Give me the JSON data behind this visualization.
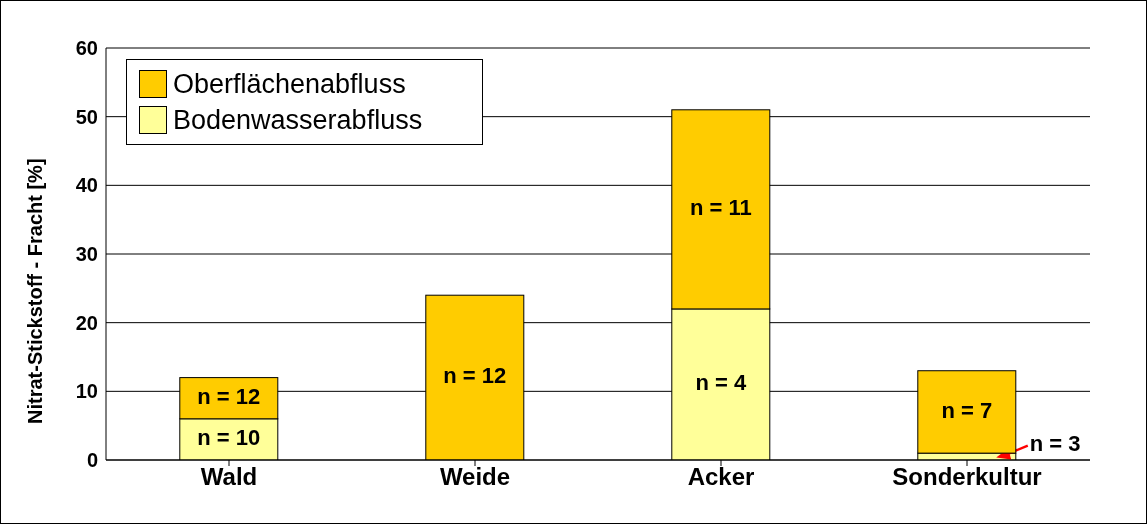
{
  "chart_data": {
    "type": "bar",
    "stacked": true,
    "ylabel": "Nitrat-Stickstoff - Fracht [%]",
    "categories": [
      "Wald",
      "Weide",
      "Acker",
      "Sonderkultur"
    ],
    "series": [
      {
        "name": "Bodenwasserabfluss",
        "color": "#ffff99",
        "values": [
          6,
          0,
          22,
          1
        ]
      },
      {
        "name": "Oberflächenabfluss",
        "color": "#ffcc00",
        "values": [
          6,
          24,
          29,
          12
        ]
      }
    ],
    "ylim": [
      0,
      60
    ],
    "yticks": [
      0,
      10,
      20,
      30,
      40,
      50,
      60
    ],
    "grid": "y",
    "legend": "top left",
    "annotations": [
      "n = 10",
      "n = 12",
      "n = 12",
      "n = 4",
      "n = 11",
      "n = 3",
      "n = 7"
    ]
  }
}
